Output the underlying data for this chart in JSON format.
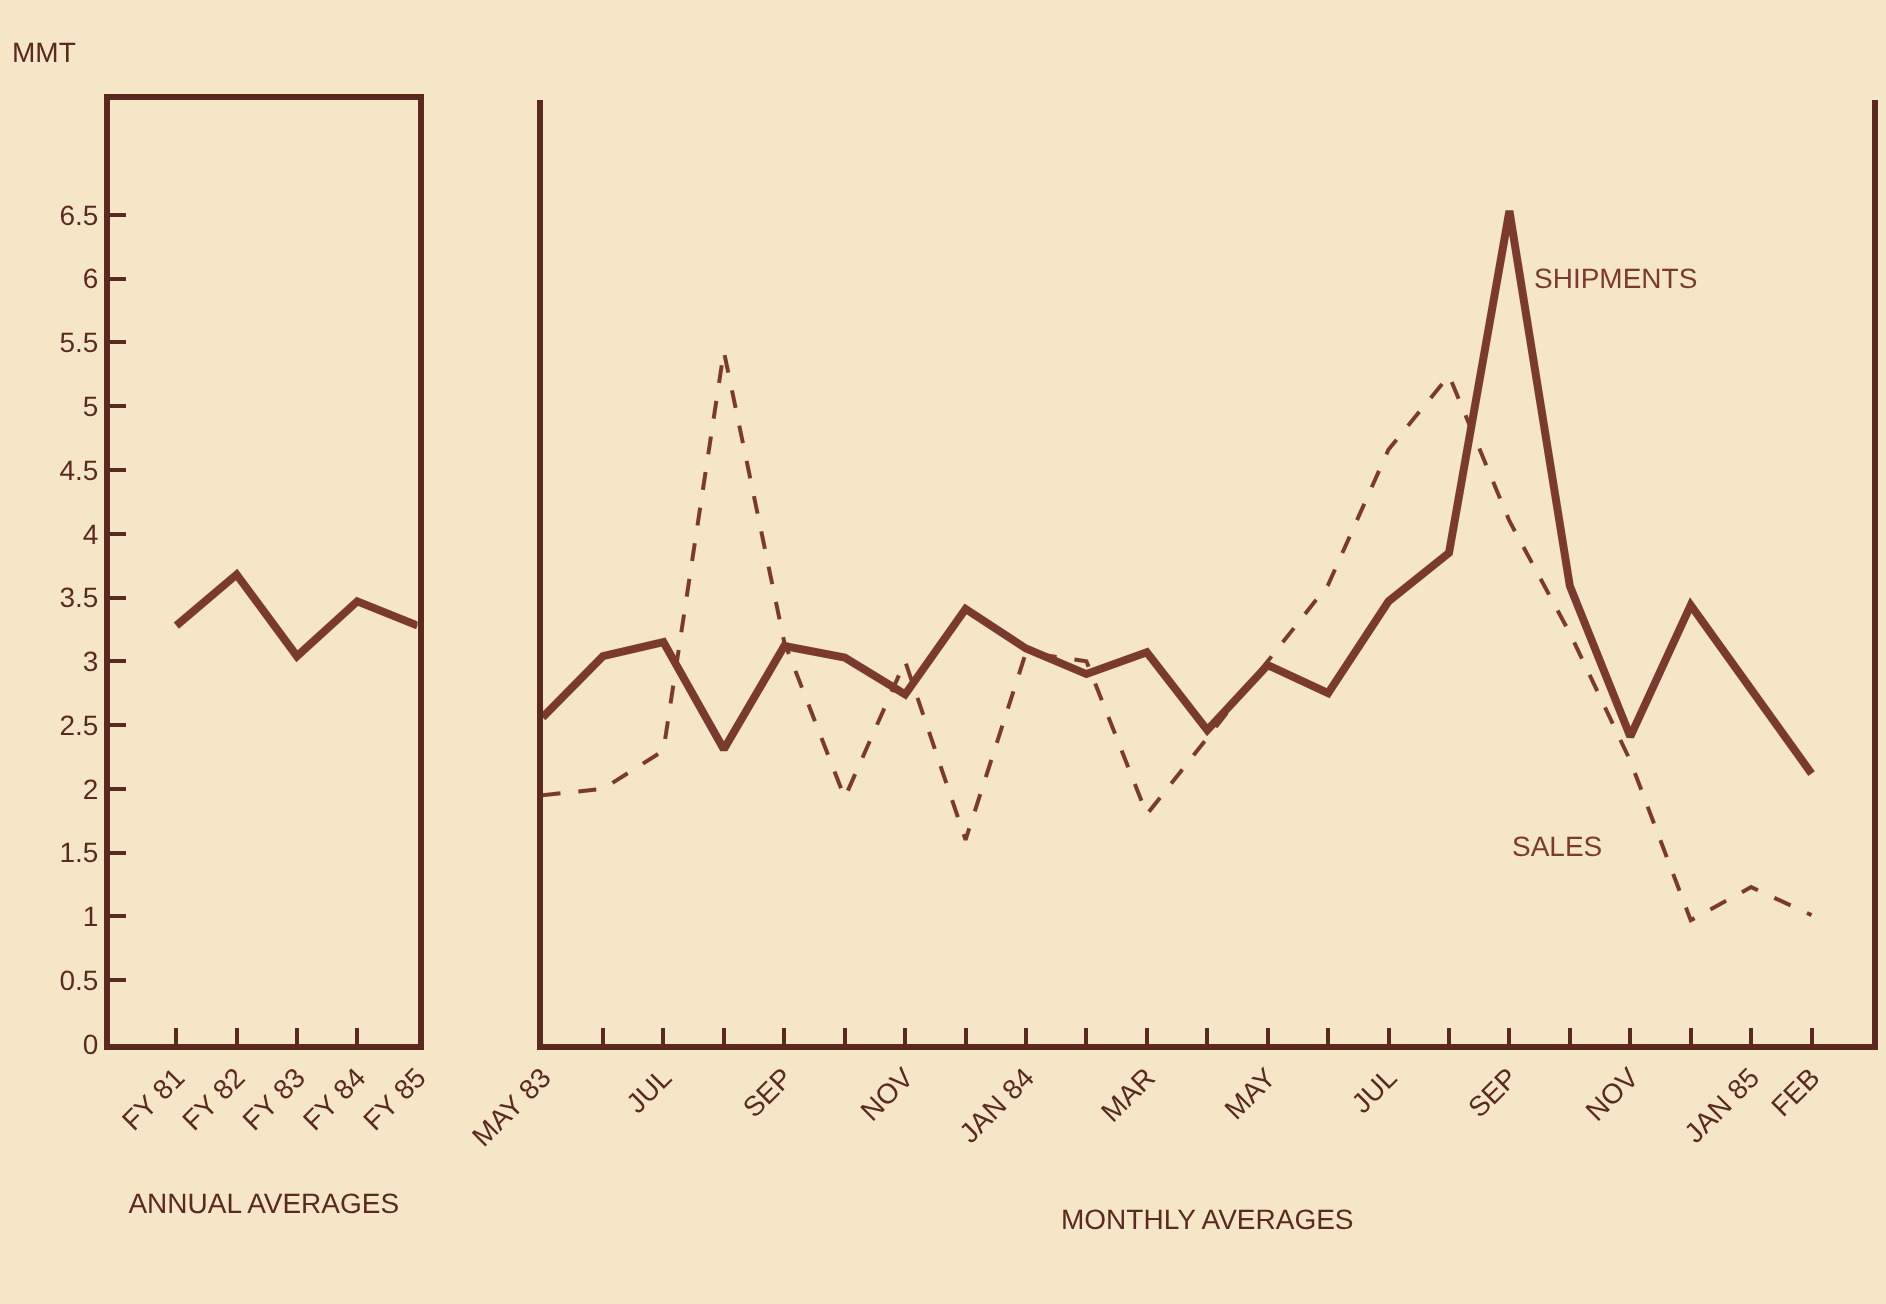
{
  "chart_data": [
    {
      "type": "line",
      "ylabel": "MMT",
      "xlabel": "ANNUAL AVERAGES",
      "categories": [
        "FY 81",
        "FY 82",
        "FY 83",
        "FY 84",
        "FY 85"
      ],
      "series": [
        {
          "color": "#7b3a2e",
          "line_style": "solid",
          "values": [
            3.28,
            3.68,
            3.04,
            3.47,
            3.28
          ]
        }
      ],
      "ylim": [
        0,
        7.4
      ],
      "yticks": [
        0,
        0.5,
        1,
        1.5,
        2,
        2.5,
        3,
        3.5,
        4,
        4.5,
        5,
        5.5,
        6,
        6.5
      ]
    },
    {
      "type": "line",
      "xlabel": "MONTHLY AVERAGES",
      "categories": [
        "MAY 83",
        null,
        "JUL",
        null,
        "SEP",
        null,
        "NOV",
        null,
        "JAN 84",
        null,
        "MAR",
        null,
        "MAY",
        null,
        "JUL",
        null,
        "SEP",
        null,
        "NOV",
        null,
        "JAN 85",
        "FEB"
      ],
      "series": [
        {
          "name": "SHIPMENTS",
          "color": "#7b3a2e",
          "line_style": "solid",
          "values": [
            2.56,
            3.04,
            3.15,
            2.31,
            3.12,
            3.03,
            2.74,
            3.41,
            3.1,
            2.9,
            3.07,
            2.46,
            2.97,
            2.75,
            3.47,
            3.85,
            6.53,
            3.59,
            2.41,
            3.44,
            2.78,
            2.12
          ]
        },
        {
          "name": "SALES",
          "color": "#7b3a2e",
          "line_style": "dashed",
          "values": [
            1.95,
            2.0,
            2.3,
            5.43,
            3.15,
            1.93,
            3.0,
            1.6,
            3.07,
            3.0,
            1.8,
            2.4,
            3.0,
            3.6,
            4.66,
            5.24,
            4.1,
            3.22,
            2.22,
            0.97,
            1.23,
            1.01
          ]
        }
      ],
      "ylim": [
        0,
        7.4
      ],
      "yticks": [
        0,
        0.5,
        1,
        1.5,
        2,
        2.5,
        3,
        3.5,
        4,
        4.5,
        5,
        5.5,
        6,
        6.5
      ],
      "tick_labels": "x"
    }
  ]
}
